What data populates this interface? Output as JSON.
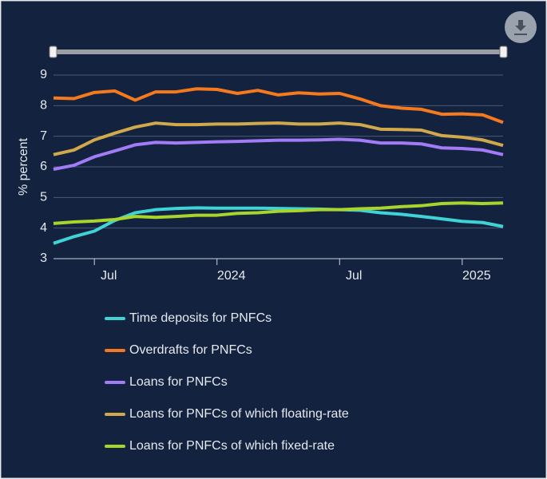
{
  "chart_data": {
    "type": "line",
    "y_label": "% percent",
    "x": [
      "2023-05",
      "2023-06",
      "2023-07",
      "2023-08",
      "2023-09",
      "2023-10",
      "2023-11",
      "2023-12",
      "2024-01",
      "2024-02",
      "2024-03",
      "2024-04",
      "2024-05",
      "2024-06",
      "2024-07",
      "2024-08",
      "2024-09",
      "2024-10",
      "2024-11",
      "2024-12",
      "2025-01",
      "2025-02",
      "2025-03"
    ],
    "xticks": [
      {
        "value": "2023-07",
        "label": "Jul"
      },
      {
        "value": "2024-01",
        "label": "2024"
      },
      {
        "value": "2024-07",
        "label": "Jul"
      },
      {
        "value": "2025-01",
        "label": "2025"
      }
    ],
    "ylim": [
      3,
      9
    ],
    "yticks": [
      3,
      4,
      5,
      6,
      7,
      8,
      9
    ],
    "grid": true,
    "series": [
      {
        "name": "Time deposits for PNFCs",
        "color": "#3fd3d6",
        "values": [
          3.5,
          3.72,
          3.9,
          4.25,
          4.5,
          4.6,
          4.64,
          4.66,
          4.65,
          4.65,
          4.65,
          4.64,
          4.63,
          4.62,
          4.6,
          4.58,
          4.5,
          4.45,
          4.38,
          4.3,
          4.22,
          4.18,
          4.05
        ]
      },
      {
        "name": "Overdrafts for PNFCs",
        "color": "#f57a1e",
        "values": [
          8.25,
          8.23,
          8.43,
          8.48,
          8.18,
          8.45,
          8.45,
          8.55,
          8.53,
          8.4,
          8.5,
          8.35,
          8.42,
          8.38,
          8.4,
          8.22,
          8.0,
          7.92,
          7.88,
          7.72,
          7.73,
          7.7,
          7.45
        ]
      },
      {
        "name": "Loans for PNFCs",
        "color": "#a47bf6",
        "values": [
          5.92,
          6.05,
          6.33,
          6.52,
          6.72,
          6.8,
          6.78,
          6.8,
          6.82,
          6.83,
          6.85,
          6.87,
          6.87,
          6.88,
          6.9,
          6.87,
          6.78,
          6.78,
          6.75,
          6.62,
          6.6,
          6.55,
          6.4
        ]
      },
      {
        "name": "Loans for PNFCs of which floating-rate",
        "color": "#d1a94c",
        "values": [
          6.4,
          6.55,
          6.88,
          7.1,
          7.3,
          7.43,
          7.38,
          7.38,
          7.4,
          7.4,
          7.42,
          7.43,
          7.4,
          7.4,
          7.43,
          7.38,
          7.23,
          7.22,
          7.2,
          7.02,
          6.97,
          6.88,
          6.7
        ]
      },
      {
        "name": "Loans for PNFCs of which fixed-rate",
        "color": "#a9d42b",
        "values": [
          4.15,
          4.2,
          4.23,
          4.28,
          4.38,
          4.35,
          4.38,
          4.42,
          4.42,
          4.48,
          4.5,
          4.55,
          4.57,
          4.6,
          4.6,
          4.63,
          4.65,
          4.7,
          4.73,
          4.8,
          4.82,
          4.8,
          4.82
        ]
      }
    ]
  }
}
